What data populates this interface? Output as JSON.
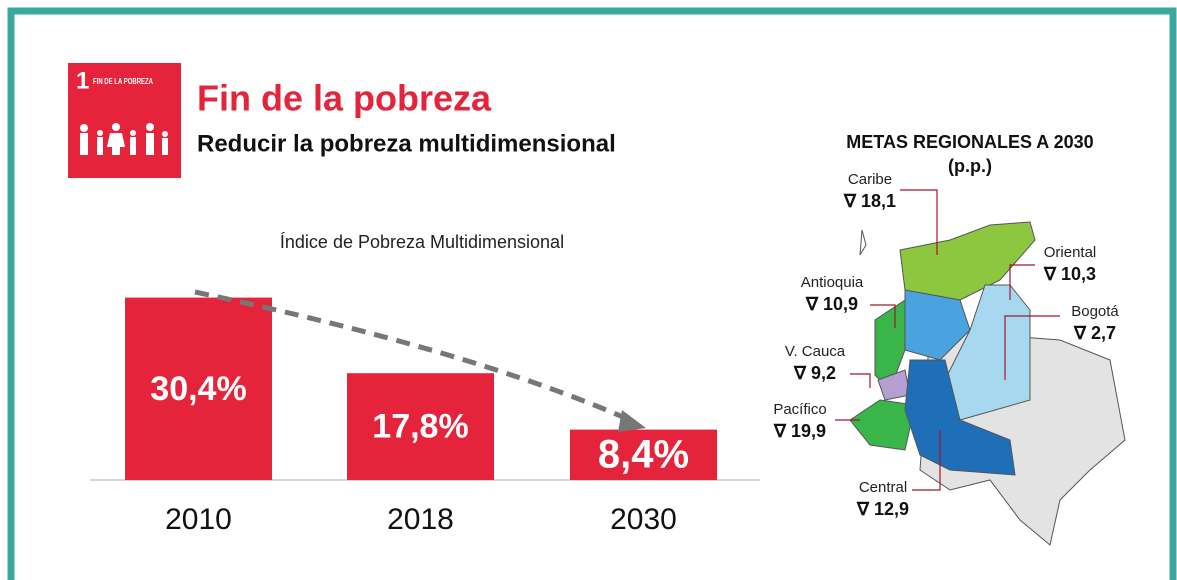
{
  "header": {
    "badge_number": "1",
    "badge_text": "FIN DE LA POBREZA",
    "title": "Fin de la pobreza",
    "subtitle": "Reducir la pobreza multidimensional"
  },
  "chart_data": {
    "type": "bar",
    "title": "Índice de Pobreza Multidimensional",
    "categories": [
      "2010",
      "2018",
      "2030"
    ],
    "values": [
      30.4,
      17.8,
      8.4
    ],
    "value_labels": [
      "30,4%",
      "17,8%",
      "8,4%"
    ],
    "color": "#e5243b",
    "ylim": [
      0,
      35
    ]
  },
  "map": {
    "title": "METAS REGIONALES A 2030",
    "subtitle": "(p.p.)",
    "regions": [
      {
        "name": "Caribe",
        "value": "∇ 18,1"
      },
      {
        "name": "Oriental",
        "value": "∇ 10,3"
      },
      {
        "name": "Antioquia",
        "value": "∇ 10,9"
      },
      {
        "name": "Bogotá",
        "value": "∇ 2,7"
      },
      {
        "name": "V. Cauca",
        "value": "∇ 9,2"
      },
      {
        "name": "Pacífico",
        "value": "∇ 19,9"
      },
      {
        "name": "Central",
        "value": "∇ 12,9"
      }
    ]
  }
}
